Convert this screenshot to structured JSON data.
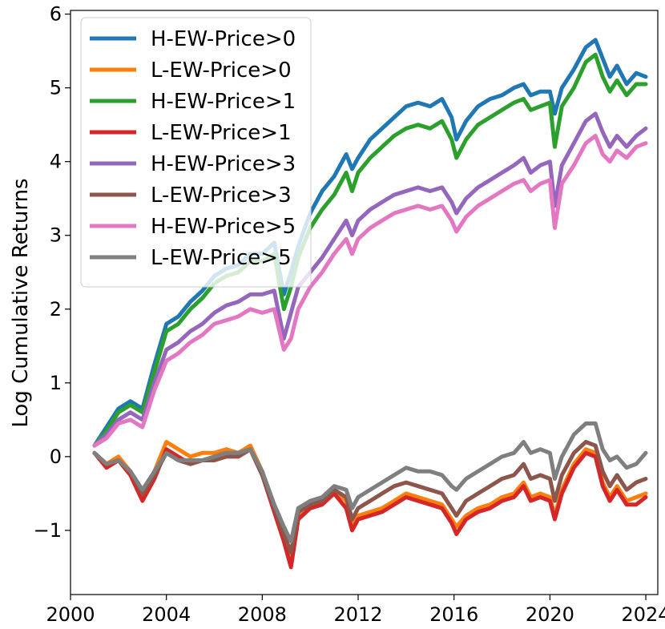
{
  "chart_data": {
    "type": "line",
    "title": "",
    "xlabel": "",
    "ylabel": "Log Cumulative Returns",
    "xlim": [
      2000.0,
      2024.5
    ],
    "ylim": [
      -1.87,
      6.05
    ],
    "xticks": [
      2000,
      2004,
      2008,
      2012,
      2016,
      2020,
      2024
    ],
    "xtick_labels": [
      "2000",
      "2004",
      "2008",
      "2012",
      "2016",
      "2020",
      "2024"
    ],
    "yticks": [
      -1,
      0,
      1,
      2,
      3,
      4,
      5,
      6
    ],
    "ytick_labels": [
      "−1",
      "0",
      "1",
      "2",
      "3",
      "4",
      "5",
      "6"
    ],
    "grid": false,
    "legend_position": "upper-left",
    "x": [
      2001.0,
      2001.5,
      2002.0,
      2002.5,
      2003.0,
      2003.5,
      2004.0,
      2004.5,
      2005.0,
      2005.5,
      2006.0,
      2006.5,
      2007.0,
      2007.5,
      2008.0,
      2008.5,
      2008.9,
      2009.2,
      2009.5,
      2010.0,
      2010.5,
      2011.0,
      2011.5,
      2011.75,
      2012.0,
      2012.5,
      2013.0,
      2013.5,
      2014.0,
      2014.5,
      2015.0,
      2015.5,
      2015.9,
      2016.1,
      2016.5,
      2017.0,
      2017.5,
      2018.0,
      2018.5,
      2018.9,
      2019.2,
      2019.6,
      2020.0,
      2020.2,
      2020.5,
      2021.0,
      2021.5,
      2021.9,
      2022.2,
      2022.5,
      2022.8,
      2023.2,
      2023.6,
      2024.0
    ],
    "series": [
      {
        "name": "H-EW-Price>0",
        "color": "#1f77b4",
        "values": [
          0.15,
          0.4,
          0.65,
          0.75,
          0.65,
          1.25,
          1.8,
          1.9,
          2.1,
          2.25,
          2.45,
          2.55,
          2.6,
          2.75,
          2.75,
          2.9,
          2.2,
          2.5,
          2.85,
          3.3,
          3.6,
          3.8,
          4.1,
          3.9,
          4.05,
          4.3,
          4.45,
          4.6,
          4.75,
          4.8,
          4.75,
          4.85,
          4.6,
          4.3,
          4.55,
          4.75,
          4.85,
          4.9,
          5.0,
          5.05,
          4.9,
          4.95,
          4.95,
          4.65,
          5.0,
          5.25,
          5.55,
          5.65,
          5.4,
          5.15,
          5.3,
          5.05,
          5.2,
          5.15
        ]
      },
      {
        "name": "L-EW-Price>0",
        "color": "#ff7f0e",
        "values": [
          0.05,
          -0.1,
          0.0,
          -0.2,
          -0.55,
          -0.2,
          0.2,
          0.1,
          0.0,
          0.05,
          0.05,
          0.1,
          0.05,
          0.15,
          -0.2,
          -0.7,
          -1.1,
          -1.4,
          -0.8,
          -0.65,
          -0.6,
          -0.45,
          -0.6,
          -0.9,
          -0.8,
          -0.75,
          -0.7,
          -0.6,
          -0.5,
          -0.55,
          -0.6,
          -0.65,
          -0.85,
          -0.95,
          -0.8,
          -0.7,
          -0.65,
          -0.55,
          -0.5,
          -0.35,
          -0.55,
          -0.5,
          -0.55,
          -0.8,
          -0.45,
          -0.1,
          0.1,
          0.05,
          -0.35,
          -0.55,
          -0.4,
          -0.6,
          -0.55,
          -0.5
        ]
      },
      {
        "name": "H-EW-Price>1",
        "color": "#2ca02c",
        "values": [
          0.15,
          0.35,
          0.6,
          0.7,
          0.6,
          1.15,
          1.7,
          1.8,
          2.0,
          2.15,
          2.35,
          2.45,
          2.5,
          2.65,
          2.65,
          2.75,
          2.0,
          2.3,
          2.7,
          3.1,
          3.35,
          3.55,
          3.85,
          3.6,
          3.85,
          4.05,
          4.2,
          4.35,
          4.45,
          4.5,
          4.45,
          4.55,
          4.3,
          4.05,
          4.3,
          4.5,
          4.6,
          4.7,
          4.8,
          4.85,
          4.7,
          4.75,
          4.8,
          4.2,
          4.75,
          5.0,
          5.35,
          5.45,
          5.15,
          4.95,
          5.1,
          4.9,
          5.05,
          5.05
        ]
      },
      {
        "name": "L-EW-Price>1",
        "color": "#d62728",
        "values": [
          0.05,
          -0.15,
          -0.05,
          -0.25,
          -0.6,
          -0.3,
          0.1,
          0.0,
          -0.1,
          -0.05,
          0.0,
          0.05,
          0.0,
          0.1,
          -0.25,
          -0.75,
          -1.15,
          -1.5,
          -0.85,
          -0.7,
          -0.65,
          -0.5,
          -0.7,
          -1.0,
          -0.85,
          -0.8,
          -0.75,
          -0.65,
          -0.55,
          -0.6,
          -0.65,
          -0.7,
          -0.9,
          -1.05,
          -0.85,
          -0.75,
          -0.7,
          -0.6,
          -0.55,
          -0.4,
          -0.6,
          -0.55,
          -0.6,
          -0.85,
          -0.5,
          -0.15,
          0.05,
          0.0,
          -0.4,
          -0.6,
          -0.45,
          -0.65,
          -0.65,
          -0.55
        ]
      },
      {
        "name": "H-EW-Price>3",
        "color": "#9467bd",
        "values": [
          0.15,
          0.3,
          0.5,
          0.6,
          0.5,
          1.0,
          1.45,
          1.55,
          1.7,
          1.8,
          1.95,
          2.05,
          2.1,
          2.2,
          2.2,
          2.25,
          1.6,
          1.95,
          2.3,
          2.5,
          2.7,
          2.95,
          3.2,
          3.0,
          3.2,
          3.35,
          3.45,
          3.55,
          3.6,
          3.65,
          3.6,
          3.65,
          3.45,
          3.3,
          3.5,
          3.65,
          3.75,
          3.85,
          3.95,
          4.05,
          3.85,
          3.95,
          4.0,
          3.4,
          3.95,
          4.25,
          4.55,
          4.65,
          4.4,
          4.2,
          4.35,
          4.2,
          4.35,
          4.45
        ]
      },
      {
        "name": "L-EW-Price>3",
        "color": "#8c564b",
        "values": [
          0.05,
          -0.1,
          -0.05,
          -0.2,
          -0.5,
          -0.25,
          0.05,
          -0.05,
          -0.1,
          -0.05,
          -0.05,
          0.0,
          0.0,
          0.1,
          -0.25,
          -0.7,
          -1.05,
          -1.3,
          -0.75,
          -0.65,
          -0.6,
          -0.45,
          -0.55,
          -0.85,
          -0.7,
          -0.6,
          -0.5,
          -0.4,
          -0.35,
          -0.4,
          -0.45,
          -0.5,
          -0.7,
          -0.8,
          -0.6,
          -0.5,
          -0.4,
          -0.3,
          -0.25,
          -0.1,
          -0.3,
          -0.25,
          -0.3,
          -0.6,
          -0.25,
          0.05,
          0.2,
          0.15,
          -0.2,
          -0.4,
          -0.25,
          -0.45,
          -0.35,
          -0.3
        ]
      },
      {
        "name": "H-EW-Price>5",
        "color": "#e377c2",
        "values": [
          0.15,
          0.25,
          0.45,
          0.5,
          0.4,
          0.9,
          1.3,
          1.4,
          1.55,
          1.65,
          1.8,
          1.85,
          1.9,
          2.0,
          1.95,
          2.0,
          1.45,
          1.6,
          2.0,
          2.3,
          2.5,
          2.75,
          2.95,
          2.75,
          2.95,
          3.1,
          3.2,
          3.3,
          3.35,
          3.4,
          3.35,
          3.4,
          3.2,
          3.05,
          3.25,
          3.4,
          3.5,
          3.6,
          3.7,
          3.75,
          3.6,
          3.7,
          3.75,
          3.1,
          3.7,
          3.95,
          4.25,
          4.35,
          4.1,
          4.0,
          4.15,
          4.05,
          4.2,
          4.25
        ]
      },
      {
        "name": "L-EW-Price>5",
        "color": "#7f7f7f",
        "values": [
          0.05,
          -0.1,
          -0.05,
          -0.2,
          -0.45,
          -0.2,
          0.05,
          -0.05,
          -0.05,
          -0.05,
          0.0,
          0.05,
          0.05,
          0.1,
          -0.2,
          -0.65,
          -0.95,
          -1.15,
          -0.7,
          -0.6,
          -0.55,
          -0.4,
          -0.45,
          -0.7,
          -0.55,
          -0.45,
          -0.35,
          -0.25,
          -0.15,
          -0.2,
          -0.2,
          -0.25,
          -0.4,
          -0.45,
          -0.3,
          -0.2,
          -0.1,
          0.0,
          0.05,
          0.2,
          0.05,
          0.1,
          0.05,
          -0.3,
          0.0,
          0.3,
          0.45,
          0.45,
          0.1,
          -0.05,
          0.0,
          -0.15,
          -0.1,
          0.05
        ]
      }
    ]
  }
}
